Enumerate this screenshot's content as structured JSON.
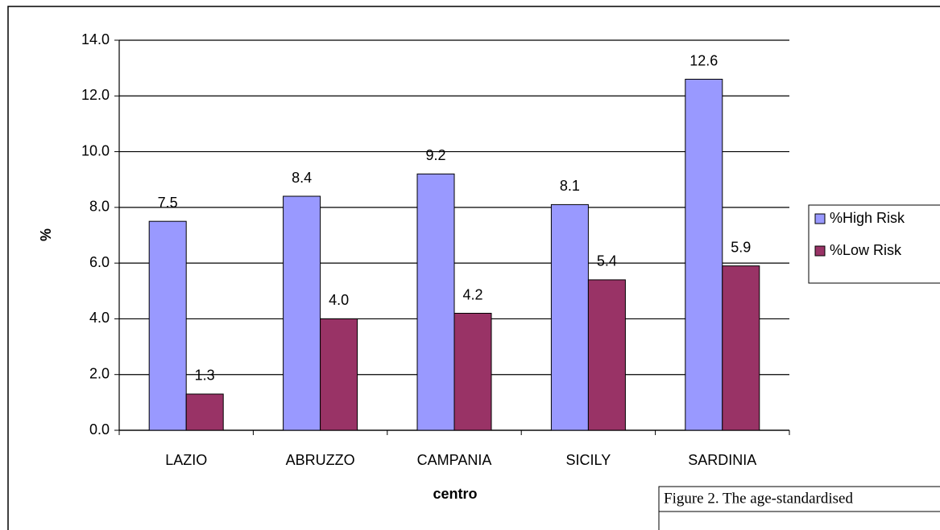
{
  "chart_data": {
    "type": "bar",
    "y_label": "%",
    "x_label": "centro",
    "categories": [
      "LAZIO",
      "ABRUZZO",
      "CAMPANIA",
      "SICILY",
      "SARDINIA"
    ],
    "series": [
      {
        "name": "%High Risk",
        "color": "#9999ff",
        "values": [
          7.5,
          8.4,
          9.2,
          8.1,
          12.6
        ],
        "value_labels": [
          "7.5",
          "8.4",
          "9.2",
          "8.1",
          "12.6"
        ]
      },
      {
        "name": "%Low Risk",
        "color": "#993366",
        "values": [
          1.3,
          4.0,
          4.2,
          5.4,
          5.9
        ],
        "value_labels": [
          "1.3",
          "4.0",
          "4.2",
          "5.4",
          "5.9"
        ]
      }
    ],
    "ylim": [
      0,
      14
    ],
    "yticks": [
      {
        "value": 0,
        "label": "0.0"
      },
      {
        "value": 2,
        "label": "2.0"
      },
      {
        "value": 4,
        "label": "4.0"
      },
      {
        "value": 6,
        "label": "6.0"
      },
      {
        "value": 8,
        "label": "8.0"
      },
      {
        "value": 10,
        "label": "10.0"
      },
      {
        "value": 12,
        "label": "12.0"
      },
      {
        "value": 14,
        "label": "14.0"
      }
    ],
    "grid": true,
    "legend": "right",
    "caption": "Figure 2. The age-standardised"
  }
}
